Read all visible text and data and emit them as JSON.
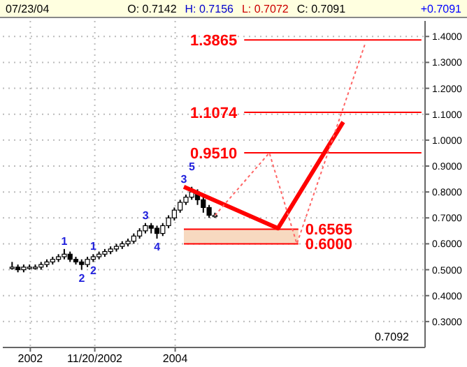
{
  "chart_data": {
    "type": "candlestick",
    "x": [
      2001.75,
      2001.83,
      2001.91,
      2001.99,
      2002.07,
      2002.15,
      2002.23,
      2002.31,
      2002.39,
      2002.47,
      2002.55,
      2002.63,
      2002.71,
      2002.79,
      2002.87,
      2002.95,
      2003.03,
      2003.11,
      2003.19,
      2003.27,
      2003.35,
      2003.43,
      2003.51,
      2003.59,
      2003.67,
      2003.75,
      2003.83,
      2003.91,
      2003.99,
      2004.07,
      2004.15,
      2004.23,
      2004.31,
      2004.39,
      2004.47,
      2004.55
    ],
    "ohlc": [
      [
        0.51,
        0.53,
        0.5,
        0.51
      ],
      [
        0.51,
        0.52,
        0.49,
        0.5
      ],
      [
        0.5,
        0.52,
        0.49,
        0.51
      ],
      [
        0.51,
        0.52,
        0.5,
        0.51
      ],
      [
        0.51,
        0.52,
        0.5,
        0.51
      ],
      [
        0.51,
        0.53,
        0.5,
        0.52
      ],
      [
        0.52,
        0.54,
        0.51,
        0.53
      ],
      [
        0.53,
        0.55,
        0.52,
        0.54
      ],
      [
        0.54,
        0.56,
        0.53,
        0.55
      ],
      [
        0.55,
        0.58,
        0.54,
        0.56
      ],
      [
        0.56,
        0.57,
        0.53,
        0.54
      ],
      [
        0.54,
        0.55,
        0.52,
        0.53
      ],
      [
        0.53,
        0.54,
        0.5,
        0.52
      ],
      [
        0.52,
        0.55,
        0.51,
        0.54
      ],
      [
        0.54,
        0.56,
        0.53,
        0.55
      ],
      [
        0.55,
        0.57,
        0.54,
        0.56
      ],
      [
        0.56,
        0.58,
        0.55,
        0.57
      ],
      [
        0.57,
        0.59,
        0.56,
        0.58
      ],
      [
        0.58,
        0.6,
        0.57,
        0.59
      ],
      [
        0.59,
        0.61,
        0.58,
        0.6
      ],
      [
        0.6,
        0.62,
        0.59,
        0.61
      ],
      [
        0.61,
        0.64,
        0.6,
        0.63
      ],
      [
        0.63,
        0.66,
        0.62,
        0.65
      ],
      [
        0.65,
        0.68,
        0.64,
        0.67
      ],
      [
        0.67,
        0.68,
        0.64,
        0.66
      ],
      [
        0.66,
        0.67,
        0.62,
        0.64
      ],
      [
        0.64,
        0.68,
        0.63,
        0.67
      ],
      [
        0.67,
        0.71,
        0.66,
        0.7
      ],
      [
        0.7,
        0.74,
        0.69,
        0.73
      ],
      [
        0.73,
        0.77,
        0.72,
        0.76
      ],
      [
        0.76,
        0.79,
        0.75,
        0.78
      ],
      [
        0.78,
        0.82,
        0.77,
        0.8
      ],
      [
        0.8,
        0.81,
        0.75,
        0.77
      ],
      [
        0.77,
        0.78,
        0.72,
        0.74
      ],
      [
        0.74,
        0.75,
        0.7,
        0.71
      ],
      [
        0.71,
        0.72,
        0.7,
        0.71
      ]
    ],
    "color": "#000000",
    "series": [
      {
        "type": "line",
        "color": "#ff0000",
        "line_style": "solid",
        "x": [
          2004.12,
          2005.42,
          2006.32
        ],
        "values": [
          0.82,
          0.66,
          1.07
        ]
      },
      {
        "type": "line",
        "color": "#ff6666",
        "line_style": "dotted",
        "x": [
          2004.55,
          2005.3,
          2005.68,
          2006.62
        ],
        "values": [
          0.71,
          0.951,
          0.6,
          1.37
        ]
      }
    ],
    "xlim": [
      2001.62,
      2007.45
    ],
    "xticks": [
      {
        "value": 2002,
        "label": "2002"
      },
      {
        "value": 2002.89,
        "label": "11/20/2002"
      },
      {
        "value": 2004,
        "label": "2004"
      }
    ],
    "ylim": [
      0.2,
      1.46
    ],
    "yticks": [
      {
        "value": 0.3,
        "label": "0.3000"
      },
      {
        "value": 0.4,
        "label": "0.4000"
      },
      {
        "value": 0.5,
        "label": "0.5000"
      },
      {
        "value": 0.6,
        "label": "0.6000"
      },
      {
        "value": 0.7,
        "label": "0.7000"
      },
      {
        "value": 0.8,
        "label": "0.8000"
      },
      {
        "value": 0.9,
        "label": "0.9000"
      },
      {
        "value": 1.0,
        "label": "1.0000"
      },
      {
        "value": 1.1,
        "label": "1.1000"
      },
      {
        "value": 1.2,
        "label": "1.2000"
      },
      {
        "value": 1.3,
        "label": "1.3000"
      },
      {
        "value": 1.4,
        "label": "1.4000"
      }
    ],
    "grid": true,
    "ref_lines": [
      {
        "axis": "y",
        "value": 1.3865,
        "label": "1.3865",
        "color": "#ff0000"
      },
      {
        "axis": "y",
        "value": 1.1074,
        "label": "1.1074",
        "color": "#ff0000"
      },
      {
        "axis": "y",
        "value": 0.951,
        "label": "0.9510",
        "color": "#ff0000"
      },
      {
        "axis": "y",
        "value": 0.6565,
        "label": "0.6565",
        "color": "#ff0000"
      },
      {
        "axis": "y",
        "value": 0.6,
        "label": "0.6000",
        "color": "#ff0000"
      }
    ],
    "bands": [
      {
        "axis": "y",
        "from": 0.6,
        "to": 0.6565,
        "color": "#f5d0b0"
      }
    ],
    "annotations": [
      "07/23/04",
      "O: 0.7142",
      "H: 0.7156",
      "L: 0.7072",
      "C: 0.7091",
      "+0.7091",
      "0.7092",
      {
        "text": "1",
        "x": 2002.47,
        "y": 0.58
      },
      {
        "text": "2",
        "x": 2002.71,
        "y": 0.5
      },
      {
        "text": "3",
        "x": 2004.12,
        "y": 0.82
      },
      {
        "text": "1",
        "x": 2002.87,
        "y": 0.56
      },
      {
        "text": "2",
        "x": 2002.87,
        "y": 0.53
      },
      {
        "text": "3",
        "x": 2003.59,
        "y": 0.68
      },
      {
        "text": "4",
        "x": 2003.75,
        "y": 0.62
      },
      {
        "text": "5",
        "x": 2004.23,
        "y": 0.82
      }
    ]
  }
}
